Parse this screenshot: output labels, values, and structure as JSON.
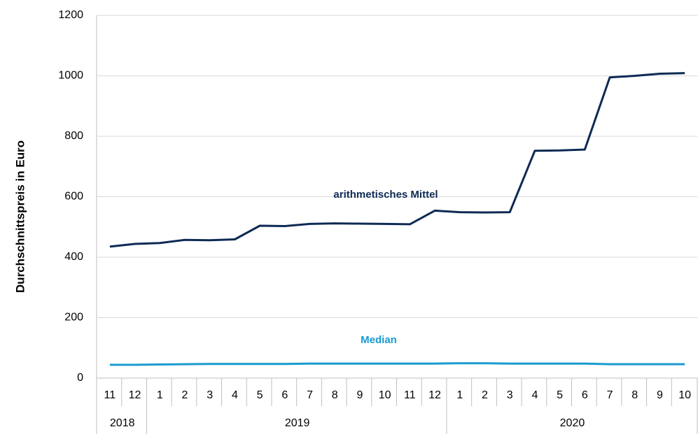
{
  "chart_data": {
    "type": "line",
    "y_label": "Durchschnittspreis in Euro",
    "categories": [
      "11",
      "12",
      "1",
      "2",
      "3",
      "4",
      "5",
      "6",
      "7",
      "8",
      "9",
      "10",
      "11",
      "12",
      "1",
      "2",
      "3",
      "4",
      "5",
      "6",
      "7",
      "8",
      "9",
      "10"
    ],
    "x_groups": [
      "2018",
      "2018",
      "2019",
      "2019",
      "2019",
      "2019",
      "2019",
      "2019",
      "2019",
      "2019",
      "2019",
      "2019",
      "2019",
      "2019",
      "2020",
      "2020",
      "2020",
      "2020",
      "2020",
      "2020",
      "2020",
      "2020",
      "2020",
      "2020"
    ],
    "series": [
      {
        "name": "arithmetisches Mittel",
        "color": "#0e2a54",
        "values": [
          435,
          444,
          447,
          457,
          456,
          459,
          504,
          503,
          510,
          512,
          511,
          510,
          509,
          554,
          549,
          548,
          549,
          752,
          753,
          756,
          995,
          1000,
          1007,
          1009
        ]
      },
      {
        "name": "Median",
        "color": "#1a9bd0",
        "values": [
          44,
          44,
          45,
          46,
          47,
          47,
          47,
          47,
          48,
          48,
          48,
          48,
          48,
          48,
          49,
          49,
          48,
          48,
          48,
          48,
          46,
          46,
          46,
          46
        ]
      }
    ],
    "ylim": [
      0,
      1200
    ],
    "yticks": [
      0,
      200,
      400,
      600,
      800,
      1000,
      1200
    ],
    "grid": true
  }
}
